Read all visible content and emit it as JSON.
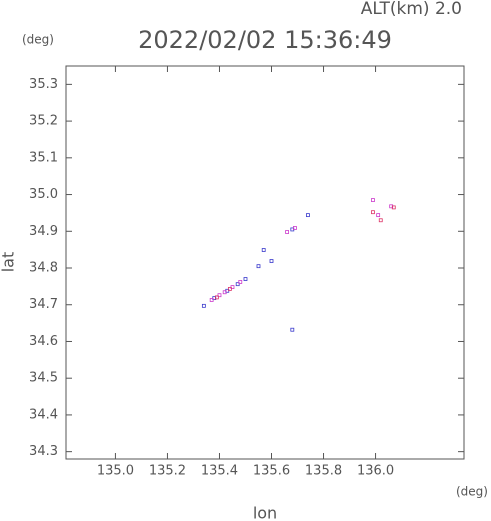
{
  "chart_data": {
    "type": "scatter",
    "title": "2022/02/02 15:36:49",
    "subtitle": "ALT(km) 2.0",
    "y_unit": "(deg)",
    "x_unit": "(deg)",
    "x_label": "lon",
    "y_label": "lat",
    "xlim": [
      134.81,
      136.34
    ],
    "ylim": [
      34.28,
      35.35
    ],
    "xticks": [
      {
        "value": 135.0,
        "label": "135.0"
      },
      135.2,
      135.4,
      135.6,
      135.8,
      {
        "value": 136.0,
        "label": "136.0"
      }
    ],
    "yticks": [
      34.3,
      34.4,
      34.5,
      34.6,
      34.7,
      34.8,
      34.9,
      {
        "value": 35.0,
        "label": "35.0"
      },
      35.1,
      35.2,
      35.3
    ],
    "series": [
      {
        "color": "#3a3acc",
        "x": [
          135.34,
          135.38,
          135.43,
          135.47,
          135.5,
          135.55,
          135.6,
          135.68,
          135.74,
          135.68,
          135.57
        ],
        "y": [
          34.697,
          34.718,
          34.738,
          34.756,
          34.77,
          34.805,
          34.819,
          34.905,
          34.944,
          34.632,
          34.849
        ]
      },
      {
        "color": "#cc3acc",
        "x": [
          135.37,
          135.4,
          135.42,
          135.45,
          135.48,
          135.66,
          135.69,
          135.99,
          136.01,
          136.06
        ],
        "y": [
          34.713,
          34.726,
          34.734,
          34.748,
          34.762,
          34.898,
          34.909,
          34.985,
          34.944,
          34.968
        ]
      },
      {
        "color": "#dd3366",
        "x": [
          135.39,
          135.44,
          135.99,
          136.02,
          136.07
        ],
        "y": [
          34.72,
          34.743,
          34.952,
          34.93,
          34.965
        ]
      }
    ]
  }
}
